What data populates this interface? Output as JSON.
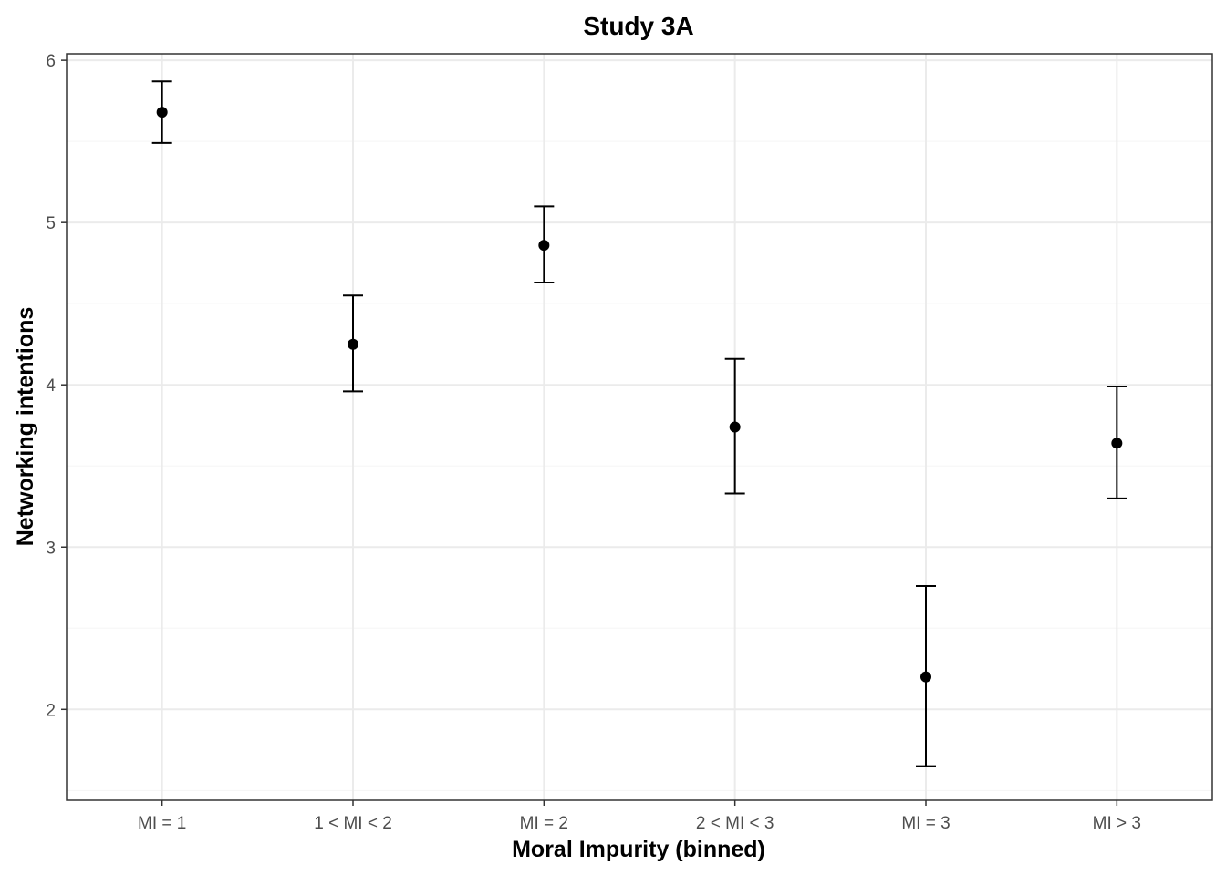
{
  "chart_data": {
    "type": "scatter",
    "title": "Study 3A",
    "xlabel": "Moral Impurity (binned)",
    "ylabel": "Networking intentions",
    "categories": [
      "MI = 1",
      "1 < MI < 2",
      "MI = 2",
      "2 < MI < 3",
      "MI = 3",
      "MI > 3"
    ],
    "series": [
      {
        "values": [
          5.68,
          4.25,
          4.86,
          3.74,
          2.2,
          3.64
        ],
        "lower": [
          5.49,
          3.96,
          4.63,
          3.33,
          1.65,
          3.3
        ],
        "upper": [
          5.87,
          4.55,
          5.1,
          4.16,
          2.76,
          3.99
        ]
      }
    ],
    "yticks": [
      2,
      3,
      4,
      5,
      6
    ],
    "ylim": [
      1.44,
      6.04
    ],
    "grid": true,
    "legend": "none",
    "colors": {
      "point": "#000000",
      "errorbar": "#000000",
      "grid": "#ebebeb",
      "panel_border": "#333333",
      "tick_label": "#4d4d4d"
    }
  }
}
